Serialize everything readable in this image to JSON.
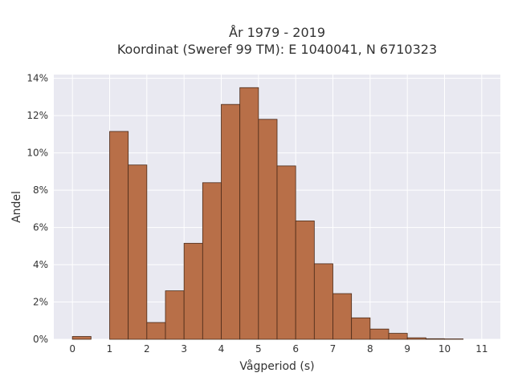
{
  "chart_data": {
    "type": "bar",
    "title": "År 1979 - 2019",
    "subtitle": "Koordinat (Sweref 99 TM): E 1040041, N 6710323",
    "xlabel": "Vågperiod (s)",
    "ylabel": "Andel",
    "bin_width": 0.5,
    "xlim": [
      -0.5,
      11.5
    ],
    "ylim": [
      0,
      14.2
    ],
    "x_ticks": [
      0,
      1,
      2,
      3,
      4,
      5,
      6,
      7,
      8,
      9,
      10,
      11
    ],
    "x_tick_labels": [
      "0",
      "1",
      "2",
      "3",
      "4",
      "5",
      "6",
      "7",
      "8",
      "9",
      "10",
      "11"
    ],
    "y_ticks": [
      0,
      2,
      4,
      6,
      8,
      10,
      12,
      14
    ],
    "y_tick_labels": [
      "0%",
      "2%",
      "4%",
      "6%",
      "8%",
      "10%",
      "12%",
      "14%"
    ],
    "grid": true,
    "bar_color": "#b86f48",
    "bar_edge_color": "#4a2a18",
    "background_color": "#e9e9f1",
    "bins": [
      {
        "start": 0.0,
        "value": 0.15
      },
      {
        "start": 1.0,
        "value": 11.15
      },
      {
        "start": 1.5,
        "value": 9.35
      },
      {
        "start": 2.0,
        "value": 0.9
      },
      {
        "start": 2.5,
        "value": 2.6
      },
      {
        "start": 3.0,
        "value": 5.15
      },
      {
        "start": 3.5,
        "value": 8.4
      },
      {
        "start": 4.0,
        "value": 12.6
      },
      {
        "start": 4.5,
        "value": 13.5
      },
      {
        "start": 5.0,
        "value": 11.8
      },
      {
        "start": 5.5,
        "value": 9.3
      },
      {
        "start": 6.0,
        "value": 6.35
      },
      {
        "start": 6.5,
        "value": 4.05
      },
      {
        "start": 7.0,
        "value": 2.45
      },
      {
        "start": 7.5,
        "value": 1.15
      },
      {
        "start": 8.0,
        "value": 0.55
      },
      {
        "start": 8.5,
        "value": 0.32
      },
      {
        "start": 9.0,
        "value": 0.08
      },
      {
        "start": 9.5,
        "value": 0.03
      },
      {
        "start": 10.0,
        "value": 0.02
      }
    ]
  }
}
